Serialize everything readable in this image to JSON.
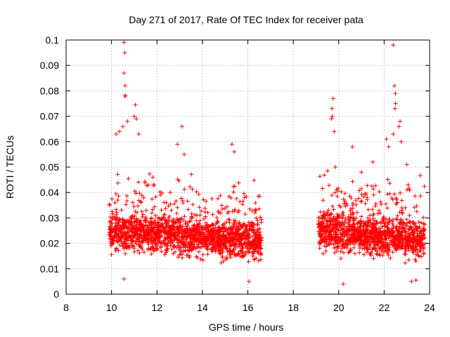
{
  "chart_data": {
    "type": "scatter",
    "title": "Day 271 of 2017, Rate Of TEC Index for receiver pata",
    "xlabel": "GPS time / hours",
    "ylabel": "ROTI / TECUs",
    "xlim": [
      8,
      24
    ],
    "ylim": [
      0,
      0.1
    ],
    "x_ticks": [
      8,
      10,
      12,
      14,
      16,
      18,
      20,
      22,
      24
    ],
    "x_tick_labels": [
      "8",
      "10",
      "12",
      "14",
      "16",
      "18",
      "20",
      "22",
      "24"
    ],
    "y_ticks": [
      0,
      0.01,
      0.02,
      0.03,
      0.04,
      0.05,
      0.06,
      0.07,
      0.08,
      0.09,
      0.1
    ],
    "y_tick_labels": [
      "0",
      "0.01",
      "0.02",
      "0.03",
      "0.04",
      "0.05",
      "0.06",
      "0.07",
      "0.08",
      "0.09",
      "0.1"
    ],
    "grid": true,
    "marker": "+",
    "color": "#ff0000",
    "series": [
      {
        "name": "ROTI",
        "segments": [
          {
            "x_start": 9.9,
            "x_end": 16.6
          },
          {
            "x_start": 19.1,
            "x_end": 23.8
          }
        ],
        "points": [
          [
            10.55,
            0.099
          ],
          [
            10.58,
            0.095
          ],
          [
            10.55,
            0.087
          ],
          [
            10.6,
            0.082
          ],
          [
            10.58,
            0.078
          ],
          [
            10.62,
            0.078
          ],
          [
            11.05,
            0.0745
          ],
          [
            11.0,
            0.07
          ],
          [
            11.1,
            0.069
          ],
          [
            10.7,
            0.068
          ],
          [
            10.5,
            0.066
          ],
          [
            10.35,
            0.064
          ],
          [
            10.2,
            0.063
          ],
          [
            11.2,
            0.063
          ],
          [
            13.1,
            0.066
          ],
          [
            12.9,
            0.059
          ],
          [
            13.2,
            0.055
          ],
          [
            15.3,
            0.059
          ],
          [
            15.4,
            0.056
          ],
          [
            10.55,
            0.006
          ],
          [
            16.05,
            0.005
          ],
          [
            19.75,
            0.077
          ],
          [
            19.7,
            0.073
          ],
          [
            19.72,
            0.07
          ],
          [
            19.68,
            0.069
          ],
          [
            19.8,
            0.064
          ],
          [
            20.6,
            0.058
          ],
          [
            22.4,
            0.098
          ],
          [
            22.45,
            0.082
          ],
          [
            22.5,
            0.079
          ],
          [
            22.5,
            0.075
          ],
          [
            22.48,
            0.073
          ],
          [
            22.7,
            0.068
          ],
          [
            22.65,
            0.066
          ],
          [
            22.1,
            0.061
          ],
          [
            22.2,
            0.058
          ],
          [
            22.4,
            0.063
          ],
          [
            22.75,
            0.06
          ],
          [
            20.2,
            0.004
          ],
          [
            23.4,
            0.0055
          ],
          [
            23.2,
            0.005
          ],
          [
            19.85,
            0.05
          ],
          [
            21.5,
            0.052
          ],
          [
            21.0,
            0.048
          ],
          [
            23.0,
            0.051
          ]
        ]
      }
    ]
  }
}
